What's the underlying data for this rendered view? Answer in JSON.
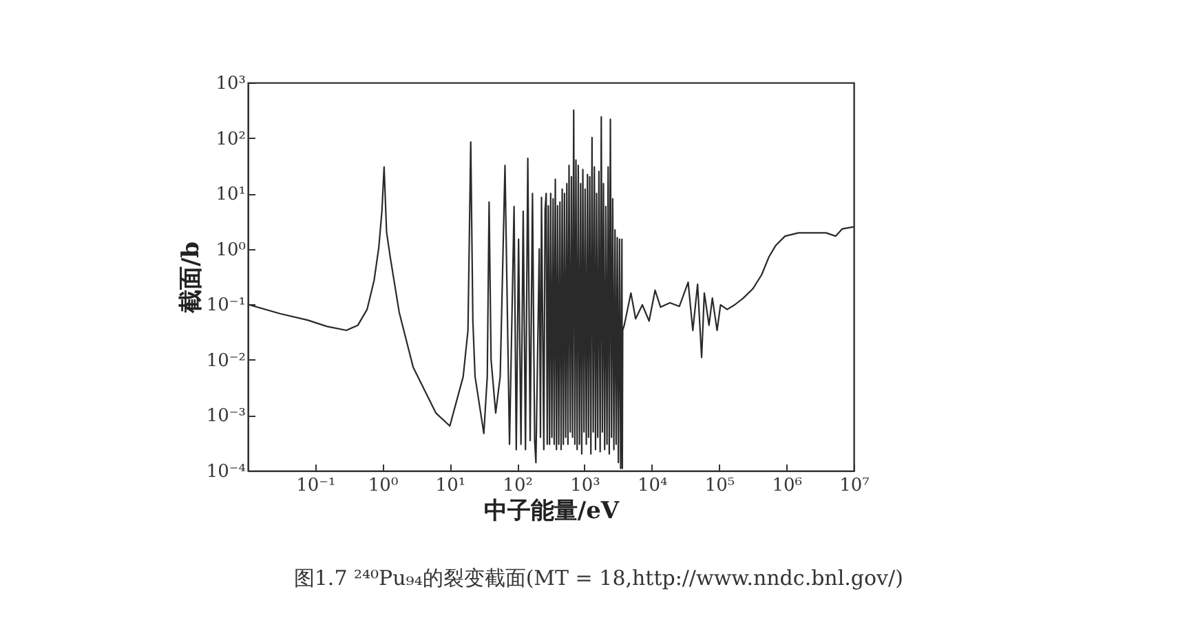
{
  "chart_data": {
    "type": "line",
    "xlabel": "中子能量/eV",
    "ylabel": "截面/b",
    "annotations": [
      "图1.7  ²⁴⁰Pu₉₄的裂变截面(MT = 18,http://www.nndc.bnl.gov/)"
    ],
    "log": "xy",
    "xlim": [
      0.01,
      10000000
    ],
    "ylim": [
      0.0001,
      1000
    ],
    "xticks": [
      {
        "value": 0.1,
        "label": "10⁻¹"
      },
      {
        "value": 1,
        "label": "10⁰"
      },
      {
        "value": 10,
        "label": "10¹"
      },
      {
        "value": 100,
        "label": "10²"
      },
      {
        "value": 1000,
        "label": "10³"
      },
      {
        "value": 10000,
        "label": "10⁴"
      },
      {
        "value": 100000,
        "label": "10⁵"
      },
      {
        "value": 1000000,
        "label": "10⁶"
      },
      {
        "value": 10000000,
        "label": "10⁷"
      }
    ],
    "yticks": [
      {
        "value": 0.0001,
        "label": "10⁻⁴"
      },
      {
        "value": 0.001,
        "label": "10⁻³"
      },
      {
        "value": 0.01,
        "label": "10⁻²"
      },
      {
        "value": 0.1,
        "label": "10⁻¹"
      },
      {
        "value": 1,
        "label": "10⁰"
      },
      {
        "value": 10,
        "label": "10¹"
      },
      {
        "value": 100,
        "label": "10²"
      },
      {
        "value": 1000,
        "label": "10³"
      }
    ],
    "x": [
      0.01,
      0.03,
      0.077,
      0.15,
      0.29,
      0.43,
      0.59,
      0.75,
      0.88,
      0.98,
      1.056,
      1.15,
      1.3,
      1.77,
      2.85,
      6.2,
      10,
      15.8,
      18.6,
      20.45,
      22,
      23.7,
      32,
      36,
      38.3,
      41,
      48,
      56,
      66,
      77,
      90,
      97,
      105,
      114,
      123,
      133,
      144,
      156,
      169,
      182,
      190,
      213,
      222,
      230,
      249,
      260,
      270,
      280,
      291,
      303,
      315,
      328,
      342,
      355,
      369,
      384,
      399,
      415,
      432,
      450,
      467,
      486,
      505,
      526,
      547,
      568,
      590,
      615,
      640,
      665,
      692,
      720,
      747,
      778,
      809,
      843,
      877,
      911,
      946,
      984,
      1023,
      1065,
      1109,
      1150,
      1197,
      1245,
      1295,
      1350,
      1403,
      1460,
      1514,
      1575,
      1640,
      1710,
      1777,
      1846,
      1916,
      1995,
      2075,
      2160,
      2248,
      2335,
      2427,
      2525,
      2626,
      2735,
      2844,
      2955,
      3070,
      3190,
      3320,
      3450,
      3600,
      3650,
      3700,
      3900,
      4900,
      5750,
      7240,
      9120,
      11200,
      13500,
      18600,
      25700,
      34700,
      40700,
      47900,
      55000,
      60300,
      70800,
      79400,
      93300,
      105000,
      132000,
      170000,
      229000,
      316000,
      427000,
      550000,
      692000,
      955000,
      1510000,
      3890000,
      5370000,
      6760000,
      10000000
    ],
    "series": [
      {
        "color": "#2a2a2a",
        "values": [
          0.1,
          0.068,
          0.052,
          0.04,
          0.034,
          0.042,
          0.081,
          0.27,
          1.05,
          4.8,
          30,
          2.0,
          0.72,
          0.072,
          0.0074,
          0.0011,
          0.00064,
          0.005,
          0.034,
          85,
          0.05,
          0.005,
          0.00047,
          0.005,
          7,
          0.01,
          0.0011,
          0.005,
          32,
          0.0003,
          5.8,
          0.00024,
          1.5,
          0.0003,
          4.8,
          0.00024,
          43,
          0.00035,
          10,
          0.00035,
          0.00014,
          1.0,
          0.0004,
          8.5,
          0.00024,
          5,
          10,
          0.0003,
          6,
          0.0003,
          10,
          0.0004,
          8,
          0.0003,
          18,
          0.00024,
          6,
          0.0003,
          7,
          0.00024,
          12,
          0.0003,
          10,
          0.0004,
          15,
          0.0003,
          32,
          0.0005,
          20,
          0.0004,
          319,
          0.0003,
          40,
          0.00024,
          32,
          0.0003,
          15,
          0.0002,
          27,
          0.0005,
          12,
          0.0003,
          22,
          0.0004,
          20,
          0.0002,
          102,
          0.0005,
          30,
          0.00024,
          10,
          0.0004,
          25,
          0.00022,
          240,
          0.0005,
          15,
          0.00024,
          5.8,
          0.0003,
          30,
          0.0002,
          218,
          0.0004,
          8,
          0.00024,
          2.2,
          0.0003,
          1.6,
          0.00014,
          1.5,
          0.00011,
          1.5,
          0.00011,
          0.034,
          0.042,
          0.16,
          0.055,
          0.098,
          0.05,
          0.18,
          0.089,
          0.107,
          0.092,
          0.25,
          0.034,
          0.23,
          0.011,
          0.16,
          0.042,
          0.13,
          0.034,
          0.098,
          0.081,
          0.098,
          0.13,
          0.19,
          0.34,
          0.72,
          1.15,
          1.7,
          1.95,
          1.95,
          1.7,
          2.3,
          2.5
        ]
      }
    ]
  }
}
